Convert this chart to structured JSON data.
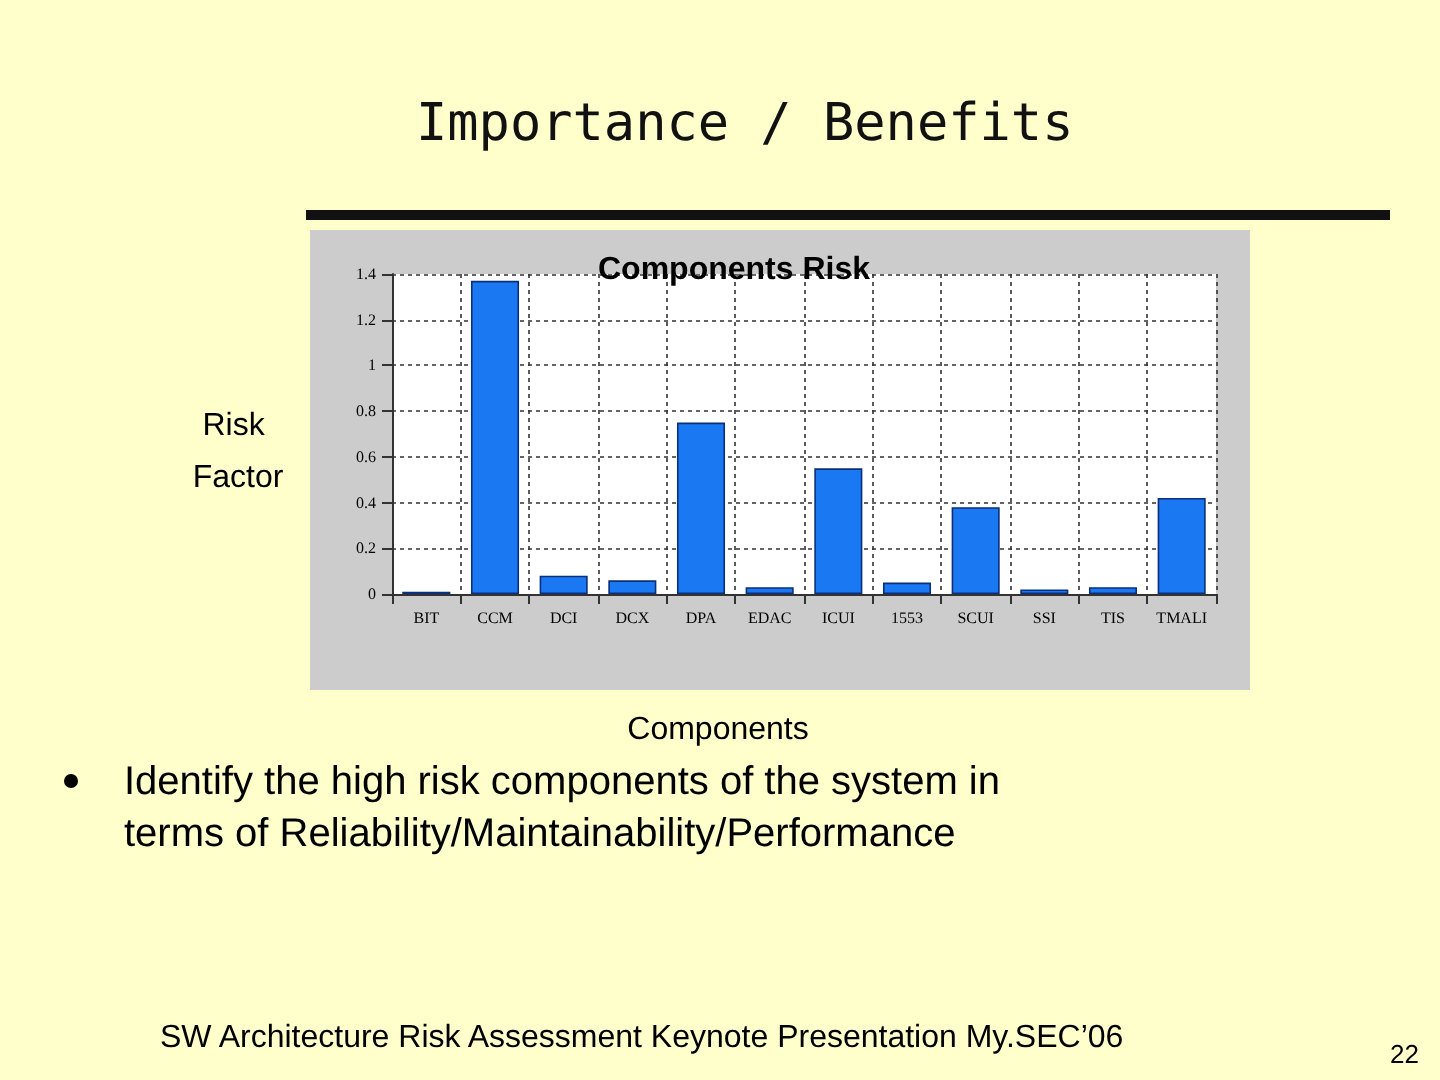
{
  "chart_data": {
    "type": "bar",
    "title": "Importance / Benefits",
    "subtitle": "Components Risk",
    "xlabel": "Components",
    "ylabel": "Risk Factor",
    "categories": [
      "BIT",
      "CCM",
      "DCI",
      "DCX",
      "DPA",
      "EDAC",
      "ICUI",
      "1553",
      "SCUI",
      "SSI",
      "TIS",
      "TMALI"
    ],
    "values": [
      0.01,
      1.37,
      0.08,
      0.06,
      0.75,
      0.03,
      0.55,
      0.05,
      0.38,
      0.02,
      0.03,
      0.42
    ],
    "color": "#1a78f2",
    "ylim": [
      0,
      1.4
    ],
    "yticks": [
      0,
      0.2,
      0.4,
      0.6,
      0.8,
      1,
      1.2,
      1.4
    ],
    "grid": true,
    "annotations": [
      "Identify the high risk components of the system in terms of Reliability/Maintainability/Performance",
      "SW Architecture Risk Assessment Keynote Presentation My.SEC’06",
      "22"
    ]
  }
}
